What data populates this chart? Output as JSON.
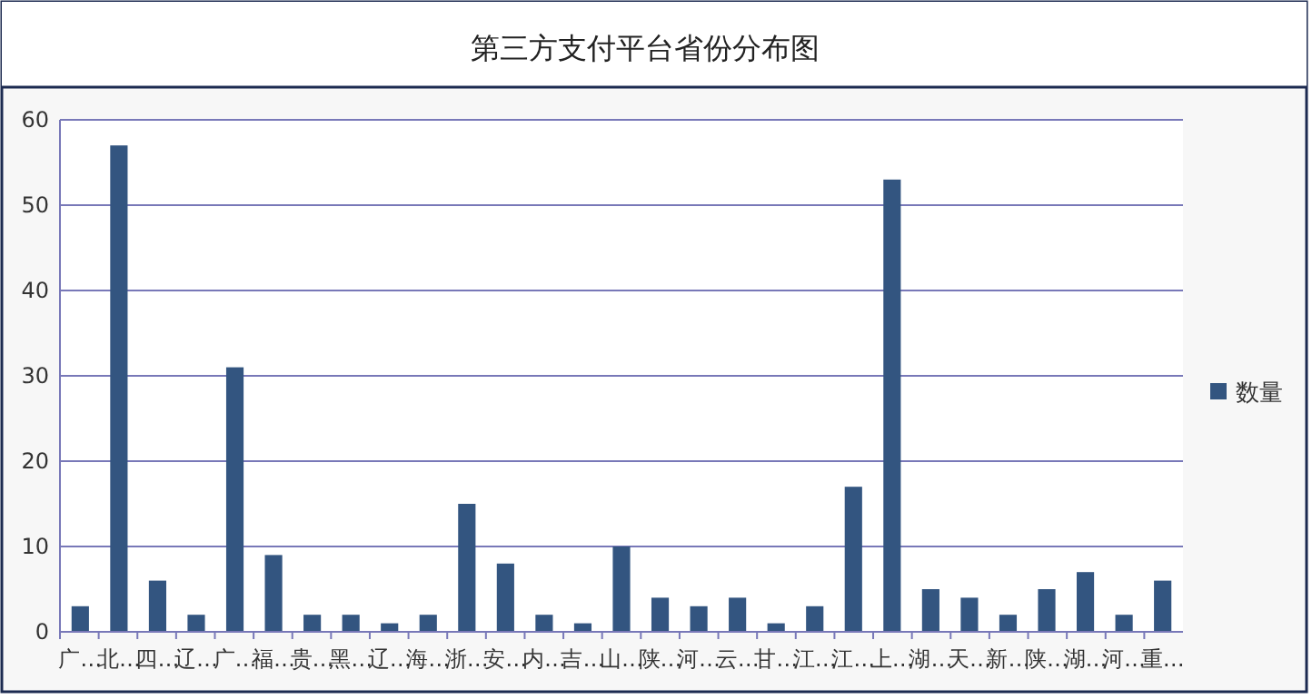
{
  "chart_data": {
    "type": "bar",
    "title": "第三方支付平台省份分布图",
    "categories": [
      "广…",
      "北…",
      "四…",
      "辽…",
      "广…",
      "福…",
      "贵…",
      "黑…",
      "辽…",
      "海…",
      "浙…",
      "安…",
      "内…",
      "吉…",
      "山…",
      "陕…",
      "河…",
      "云…",
      "甘…",
      "江…",
      "江…",
      "上…",
      "湖…",
      "天…",
      "新…",
      "陕…",
      "湖…",
      "河…",
      "重…"
    ],
    "series": [
      {
        "name": "数量",
        "color": "#335580",
        "values": [
          3,
          57,
          6,
          2,
          31,
          9,
          2,
          2,
          1,
          2,
          15,
          8,
          2,
          1,
          10,
          4,
          3,
          4,
          1,
          3,
          17,
          53,
          5,
          4,
          2,
          5,
          7,
          2,
          6
        ]
      }
    ],
    "ylim": [
      0,
      60
    ],
    "yticks": [
      0,
      10,
      20,
      30,
      40,
      50,
      60
    ],
    "grid": "y",
    "legend": "right"
  }
}
